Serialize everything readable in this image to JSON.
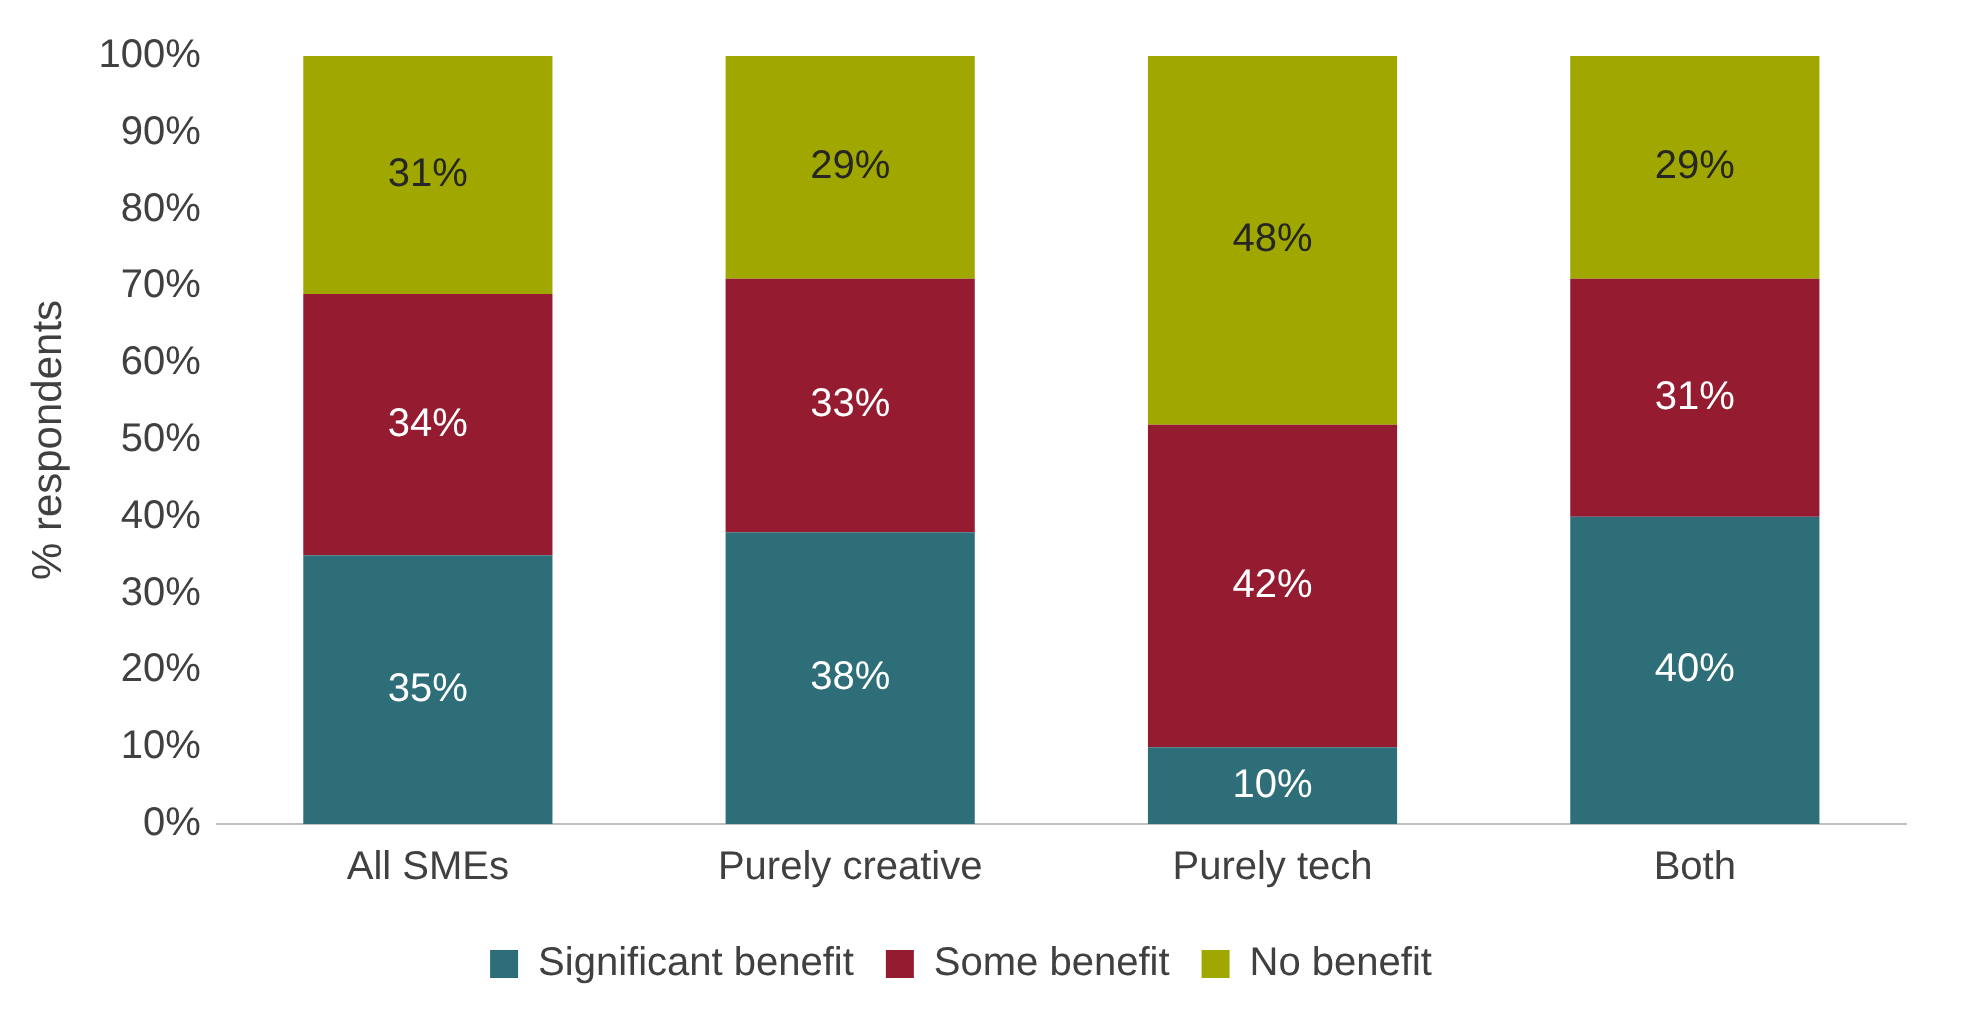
{
  "chart_data": {
    "type": "bar",
    "stacked": true,
    "ylabel": "% respondents",
    "categories": [
      "All SMEs",
      "Purely creative",
      "Purely tech",
      "Both"
    ],
    "series": [
      {
        "name": "Significant benefit",
        "color": "#2e6e78",
        "values": [
          35,
          38,
          10,
          40
        ],
        "value_labels": [
          "35%",
          "38%",
          "10%",
          "40%"
        ]
      },
      {
        "name": "Some benefit",
        "color": "#951b30",
        "values": [
          34,
          33,
          42,
          31
        ],
        "value_labels": [
          "34%",
          "33%",
          "42%",
          "31%"
        ]
      },
      {
        "name": "No benefit",
        "color": "#a0a800",
        "values": [
          31,
          29,
          48,
          29
        ],
        "value_labels": [
          "31%",
          "29%",
          "48%",
          "29%"
        ]
      }
    ],
    "ylim": [
      0,
      100
    ],
    "yticks": [
      {
        "value": 0,
        "label": "0%"
      },
      {
        "value": 10,
        "label": "10%"
      },
      {
        "value": 20,
        "label": "20%"
      },
      {
        "value": 30,
        "label": "30%"
      },
      {
        "value": 40,
        "label": "40%"
      },
      {
        "value": 50,
        "label": "50%"
      },
      {
        "value": 60,
        "label": "60%"
      },
      {
        "value": 70,
        "label": "70%"
      },
      {
        "value": 80,
        "label": "80%"
      },
      {
        "value": 90,
        "label": "90%"
      },
      {
        "value": 100,
        "label": "100%"
      }
    ],
    "grid": false,
    "legend": "bottom"
  }
}
